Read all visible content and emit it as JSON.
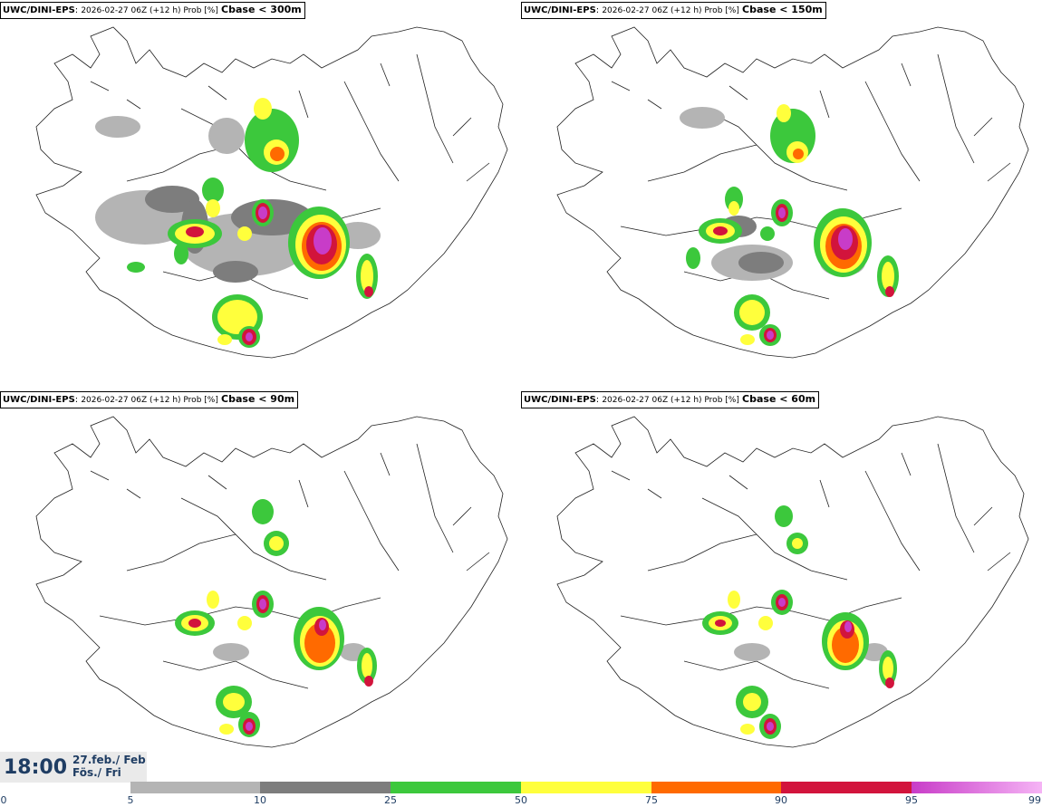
{
  "panels": [
    {
      "model": "UWC/DINI-EPS",
      "info": "2026-02-27 06Z (+12 h) Prob [%]",
      "variable": "Cbase < 300m"
    },
    {
      "model": "UWC/DINI-EPS",
      "info": "2026-02-27 06Z (+12 h) Prob [%]",
      "variable": "Cbase < 150m"
    },
    {
      "model": "UWC/DINI-EPS",
      "info": "2026-02-27 06Z (+12 h) Prob [%]",
      "variable": "Cbase < 90m"
    },
    {
      "model": "UWC/DINI-EPS",
      "info": "2026-02-27 06Z (+12 h) Prob [%]",
      "variable": "Cbase < 60m"
    }
  ],
  "valid_time": "18:00",
  "valid_date": "27.feb./ Feb",
  "valid_day": "Fös./ Fri",
  "colorbar": {
    "ticks": [
      "0",
      "5",
      "10",
      "25",
      "50",
      "75",
      "90",
      "95",
      "99"
    ],
    "colors": [
      "#ffffff",
      "#b4b4b4",
      "#7d7d7d",
      "#3cc83c",
      "#ffff3c",
      "#ff6a00",
      "#d2143c",
      "#c83cc8",
      "#f5b4f5"
    ]
  },
  "colors": {
    "grey_light": "#b4b4b4",
    "grey_dark": "#7d7d7d",
    "green": "#3cc83c",
    "yellow": "#ffff3c",
    "orange": "#ff6a00",
    "red": "#d2143c",
    "magenta": "#c83cc8",
    "text_dark_blue": "#1f3d63"
  }
}
